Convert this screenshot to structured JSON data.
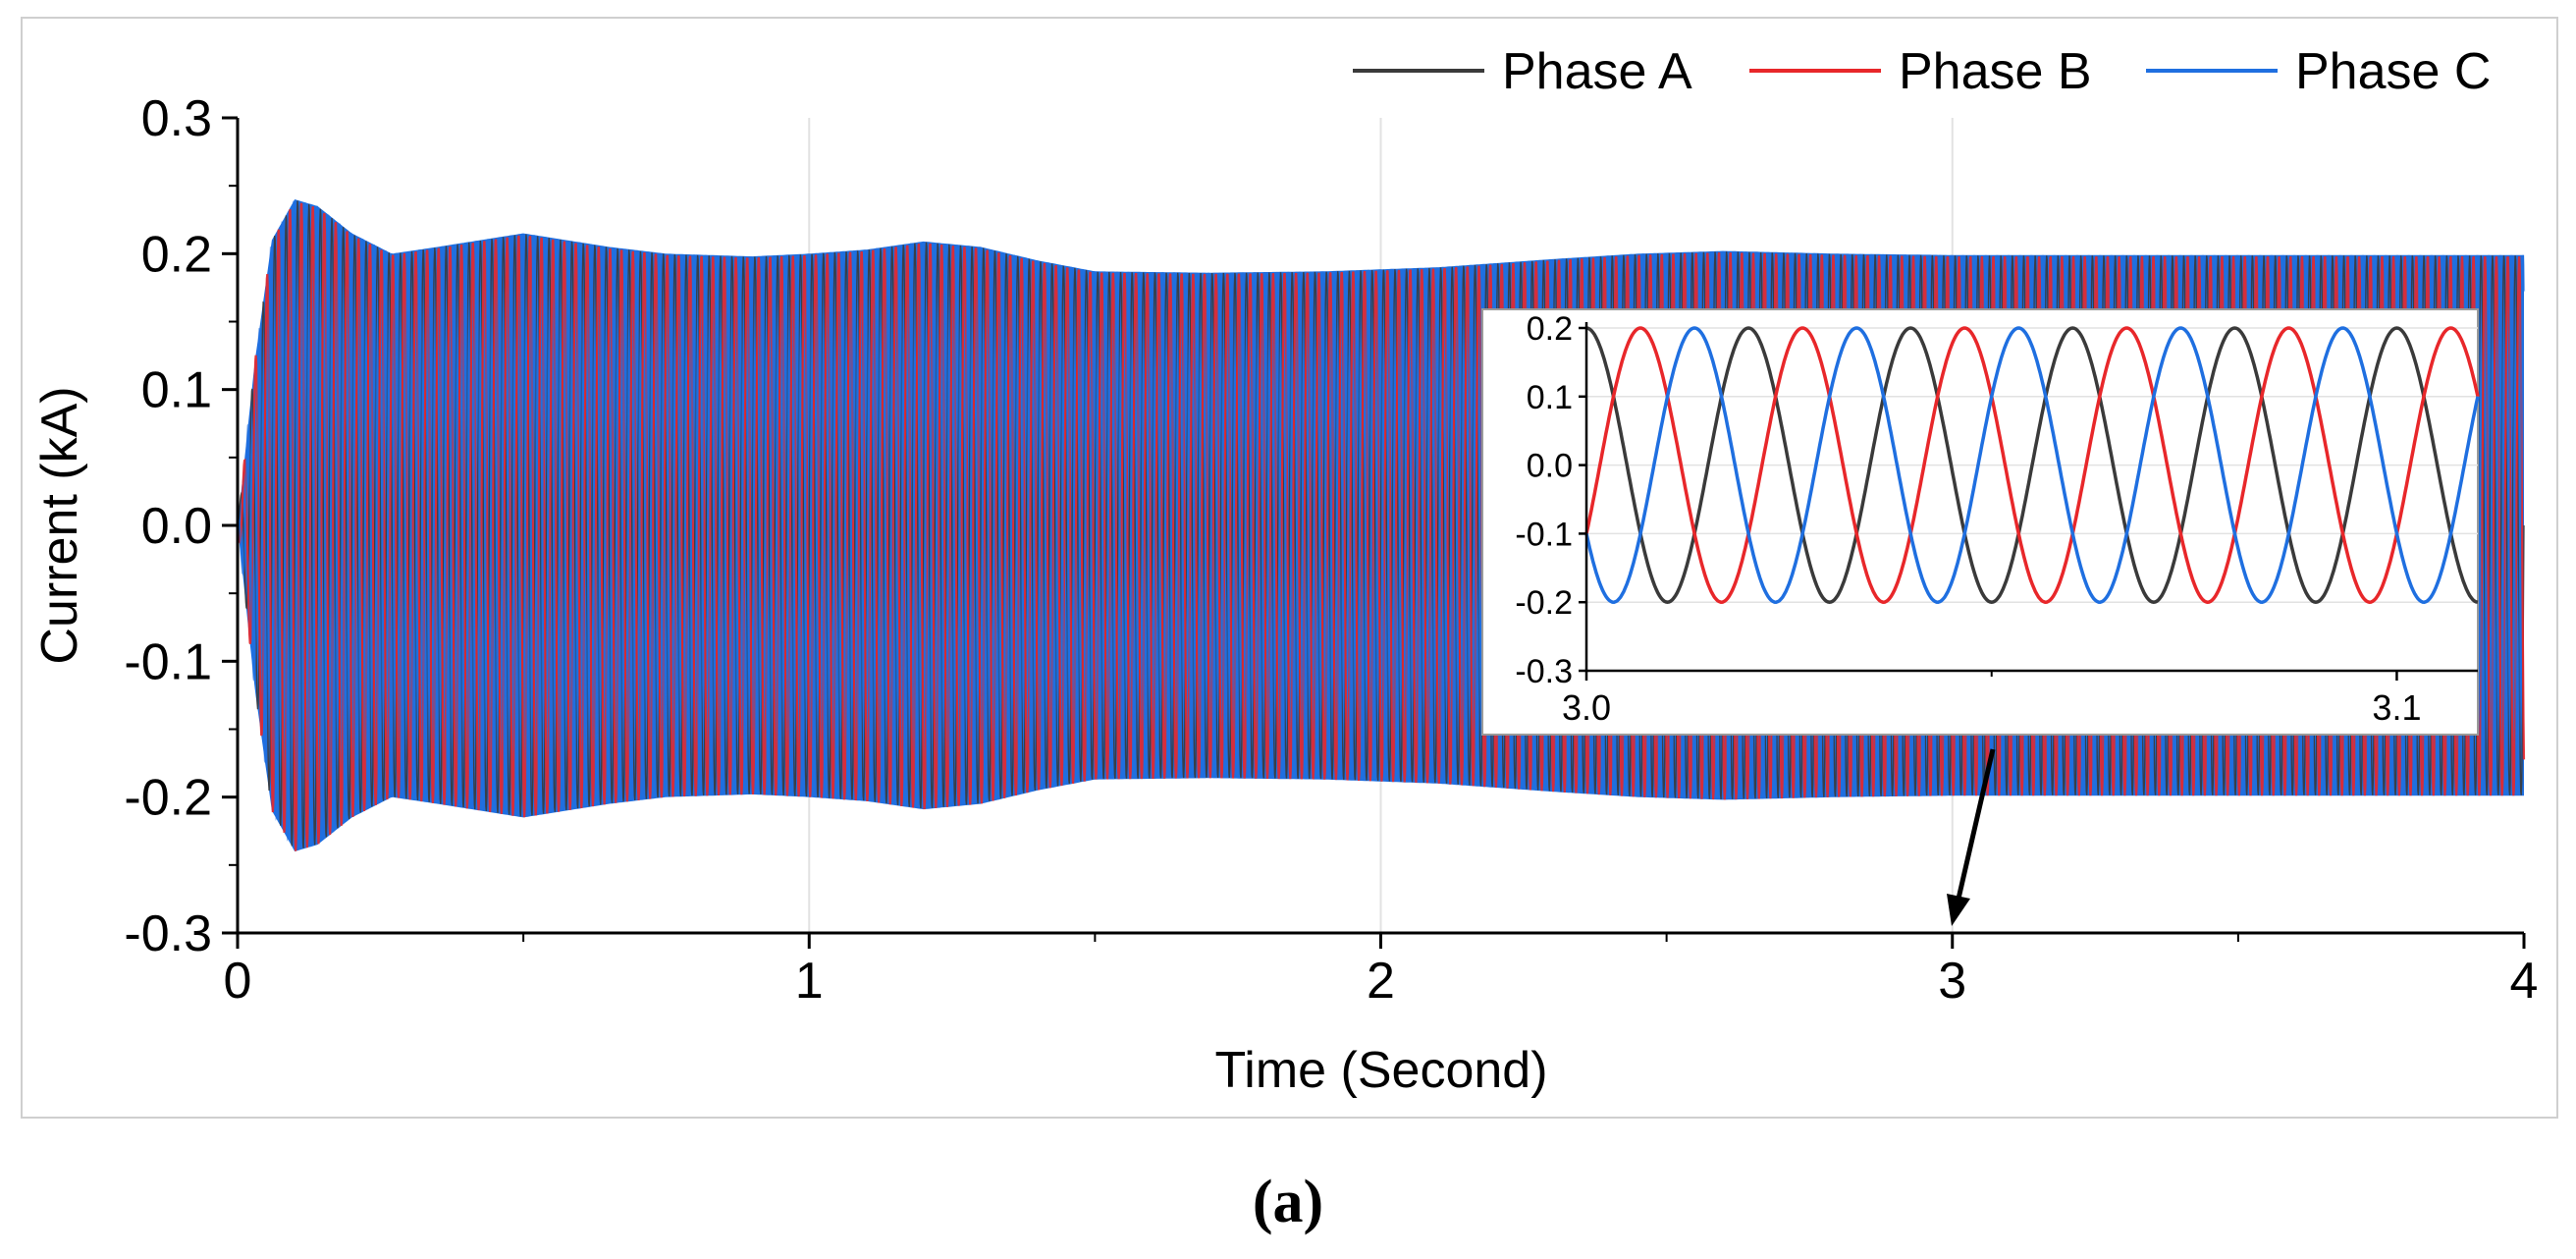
{
  "figure_label": "(a)",
  "colors": {
    "phase_a": "#3a3a3a",
    "phase_b": "#e8272a",
    "phase_c": "#1f6fe0",
    "frame": "#cfcfcf",
    "grid": "#e2e2e2",
    "axis": "#000000"
  },
  "chart_data": [
    {
      "type": "line",
      "role": "main",
      "xlabel": "Time (Second)",
      "ylabel": "Current (kA)",
      "xlim": [
        0,
        4
      ],
      "ylim": [
        -0.3,
        0.3
      ],
      "xticks": [
        0,
        1,
        2,
        3,
        4
      ],
      "xtick_labels": [
        "0",
        "1",
        "2",
        "3",
        "4"
      ],
      "yticks": [
        0.3,
        0.2,
        0.1,
        0.0,
        -0.1,
        -0.2,
        -0.3
      ],
      "ytick_labels": [
        "0.3",
        "0.2",
        "0.1",
        "0.0",
        "-0.1",
        "-0.2",
        "-0.3"
      ],
      "grid": true,
      "legend_position": "top-right",
      "frequency_hz": 50,
      "phase_shift_deg": 120,
      "series": [
        {
          "name": "Phase A",
          "color_key": "phase_a"
        },
        {
          "name": "Phase B",
          "color_key": "phase_b"
        },
        {
          "name": "Phase C",
          "color_key": "phase_c"
        }
      ],
      "envelope": {
        "time_s": [
          0.0,
          0.03,
          0.06,
          0.1,
          0.14,
          0.2,
          0.27,
          0.35,
          0.5,
          0.65,
          0.75,
          0.9,
          1.0,
          1.1,
          1.2,
          1.3,
          1.4,
          1.5,
          1.7,
          1.9,
          2.1,
          2.3,
          2.45,
          2.6,
          2.8,
          3.0,
          3.5,
          4.0
        ],
        "amplitude_kA": [
          0.0,
          0.12,
          0.21,
          0.24,
          0.235,
          0.215,
          0.2,
          0.205,
          0.215,
          0.205,
          0.2,
          0.198,
          0.2,
          0.203,
          0.209,
          0.205,
          0.195,
          0.187,
          0.186,
          0.187,
          0.19,
          0.196,
          0.2,
          0.202,
          0.2,
          0.199,
          0.199,
          0.199
        ]
      },
      "annotations": [
        "arrow from inset to t = 3 s"
      ]
    },
    {
      "type": "line",
      "role": "inset",
      "xlim": [
        3.0,
        3.11
      ],
      "ylim": [
        -0.3,
        0.2
      ],
      "xticks": [
        3.0,
        3.1
      ],
      "xtick_labels": [
        "3.0",
        "3.1"
      ],
      "yticks": [
        0.2,
        0.1,
        0.0,
        -0.1,
        -0.2,
        -0.3
      ],
      "ytick_labels": [
        "0.2",
        "0.1",
        "0.0",
        "-0.1",
        "-0.2",
        "-0.3"
      ],
      "grid": true,
      "amplitude_kA": 0.2,
      "frequency_hz": 50,
      "series": [
        {
          "name": "Phase A",
          "color_key": "phase_a",
          "phase_deg": 0
        },
        {
          "name": "Phase B",
          "color_key": "phase_b",
          "phase_deg": -120
        },
        {
          "name": "Phase C",
          "color_key": "phase_c",
          "phase_deg": 120
        }
      ]
    }
  ]
}
